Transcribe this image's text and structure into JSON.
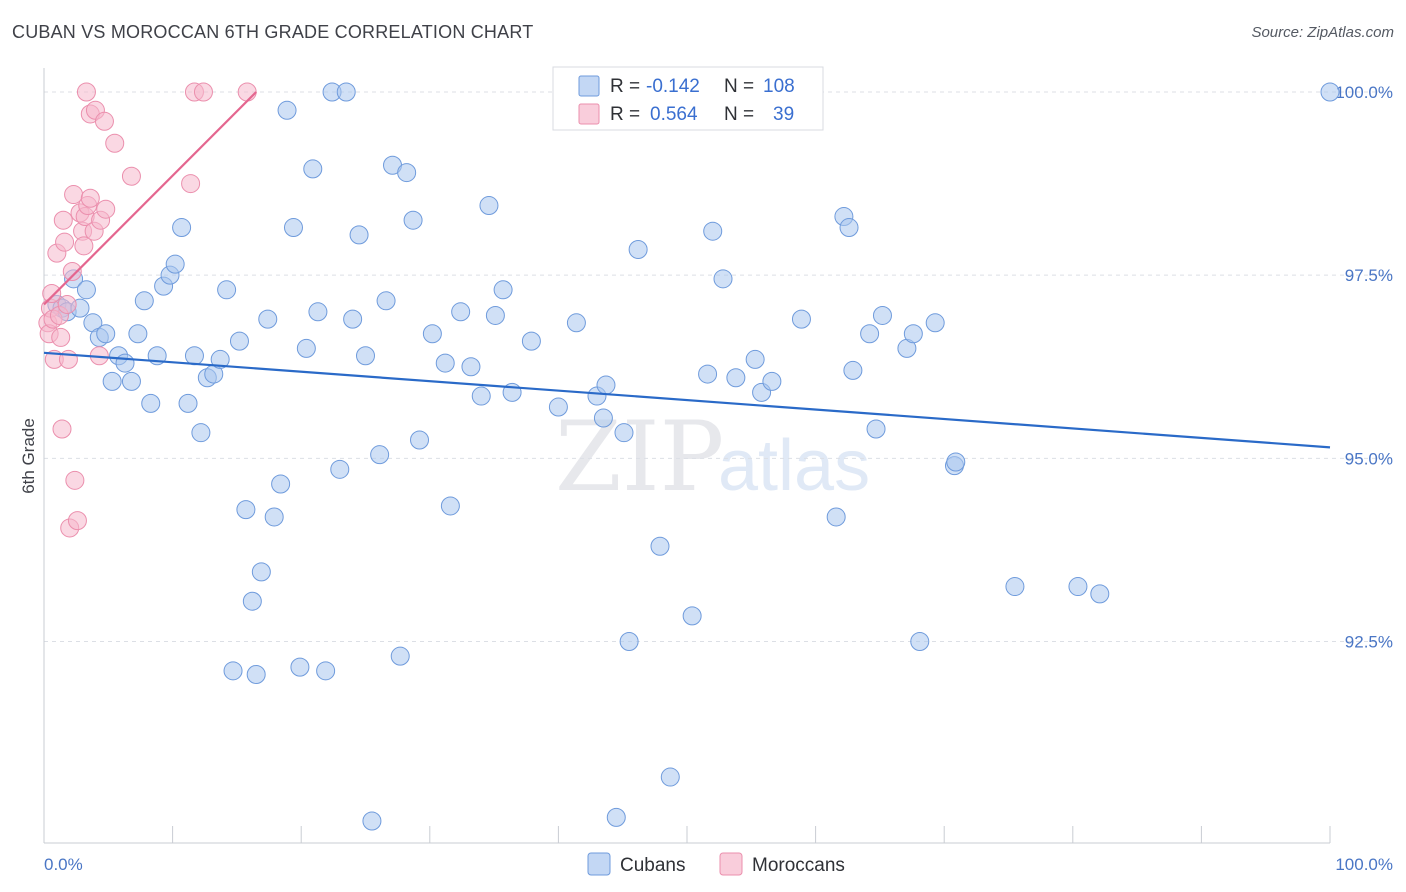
{
  "header": {
    "title": "CUBAN VS MOROCCAN 6TH GRADE CORRELATION CHART",
    "source": "Source: ZipAtlas.com"
  },
  "colors": {
    "cubans_fill": "#a9c6ef",
    "cubans_stroke": "#6f9bdc",
    "cubans_line": "#2a6ac8",
    "moroccans_fill": "#f6b8cc",
    "moroccans_stroke": "#eb8fad",
    "moroccans_line": "#e4668f",
    "axis_label": "#4a76c5",
    "grid": "#dcdfe5"
  },
  "legend_box": {
    "rows": [
      {
        "r_label": "R =",
        "r_value": "-0.142",
        "n_label": "N =",
        "n_value": "108"
      },
      {
        "r_label": "R =",
        "r_value": "0.564",
        "n_label": "N =",
        "n_value": "39"
      }
    ]
  },
  "bottom_legend": [
    "Cubans",
    "Moroccans"
  ],
  "watermark": {
    "zip": "ZIP",
    "atlas": "atlas"
  },
  "chart_data": {
    "type": "scatter",
    "title": "CUBAN VS MOROCCAN 6TH GRADE CORRELATION CHART",
    "xlabel": "",
    "ylabel": "6th Grade",
    "xlim": [
      0,
      100
    ],
    "ylim": [
      89.75,
      100.3
    ],
    "x_tick_labels": [
      "0.0%",
      "100.0%"
    ],
    "y_ticks": [
      92.5,
      95.0,
      97.5,
      100.0
    ],
    "y_tick_labels": [
      "92.5%",
      "95.0%",
      "97.5%",
      "100.0%"
    ],
    "grid": "horizontal dashed",
    "legend_position": "top-center",
    "series": [
      {
        "name": "Cubans",
        "r": -0.142,
        "n": 108,
        "trend": {
          "x": [
            0,
            100
          ],
          "y": [
            96.44,
            95.15
          ]
        },
        "points": [
          [
            1.0,
            97.1
          ],
          [
            1.4,
            97.05
          ],
          [
            1.8,
            97.0
          ],
          [
            2.3,
            97.45
          ],
          [
            2.8,
            97.05
          ],
          [
            3.3,
            97.3
          ],
          [
            3.8,
            96.85
          ],
          [
            4.3,
            96.65
          ],
          [
            4.8,
            96.7
          ],
          [
            5.3,
            96.05
          ],
          [
            5.8,
            96.4
          ],
          [
            6.3,
            96.3
          ],
          [
            6.8,
            96.05
          ],
          [
            7.3,
            96.7
          ],
          [
            7.8,
            97.15
          ],
          [
            8.3,
            95.75
          ],
          [
            8.8,
            96.4
          ],
          [
            9.3,
            97.35
          ],
          [
            9.8,
            97.5
          ],
          [
            10.2,
            97.65
          ],
          [
            10.7,
            98.15
          ],
          [
            11.2,
            95.75
          ],
          [
            11.7,
            96.4
          ],
          [
            12.2,
            95.35
          ],
          [
            12.7,
            96.1
          ],
          [
            13.2,
            96.15
          ],
          [
            13.7,
            96.35
          ],
          [
            14.2,
            97.3
          ],
          [
            14.7,
            92.1
          ],
          [
            15.2,
            96.6
          ],
          [
            15.7,
            94.3
          ],
          [
            16.2,
            93.05
          ],
          [
            16.5,
            92.05
          ],
          [
            16.9,
            93.45
          ],
          [
            17.4,
            96.9
          ],
          [
            17.9,
            94.2
          ],
          [
            18.4,
            94.65
          ],
          [
            18.9,
            99.75
          ],
          [
            19.4,
            98.15
          ],
          [
            19.9,
            92.15
          ],
          [
            20.4,
            96.5
          ],
          [
            20.9,
            98.95
          ],
          [
            21.3,
            97.0
          ],
          [
            21.9,
            92.1
          ],
          [
            22.4,
            100.0
          ],
          [
            23.0,
            94.85
          ],
          [
            23.5,
            100.0
          ],
          [
            24.0,
            96.9
          ],
          [
            24.5,
            98.05
          ],
          [
            25.0,
            96.4
          ],
          [
            25.5,
            90.05
          ],
          [
            26.1,
            95.05
          ],
          [
            26.6,
            97.15
          ],
          [
            27.1,
            99.0
          ],
          [
            27.7,
            92.3
          ],
          [
            28.2,
            98.9
          ],
          [
            28.7,
            98.25
          ],
          [
            29.2,
            95.25
          ],
          [
            30.2,
            96.7
          ],
          [
            31.2,
            96.3
          ],
          [
            31.6,
            94.35
          ],
          [
            32.4,
            97.0
          ],
          [
            33.2,
            96.25
          ],
          [
            34.0,
            95.85
          ],
          [
            34.6,
            98.45
          ],
          [
            35.1,
            96.95
          ],
          [
            35.7,
            97.3
          ],
          [
            36.4,
            95.9
          ],
          [
            37.9,
            96.6
          ],
          [
            40.0,
            95.7
          ],
          [
            41.4,
            96.85
          ],
          [
            43.0,
            95.85
          ],
          [
            43.7,
            96.0
          ],
          [
            43.5,
            95.55
          ],
          [
            44.5,
            90.1
          ],
          [
            45.1,
            95.35
          ],
          [
            45.5,
            92.5
          ],
          [
            46.2,
            97.85
          ],
          [
            47.9,
            93.8
          ],
          [
            48.7,
            90.65
          ],
          [
            50.4,
            92.85
          ],
          [
            51.6,
            96.15
          ],
          [
            52.0,
            98.1
          ],
          [
            52.8,
            97.45
          ],
          [
            53.8,
            96.1
          ],
          [
            55.3,
            96.35
          ],
          [
            55.8,
            95.9
          ],
          [
            56.6,
            96.05
          ],
          [
            58.9,
            96.9
          ],
          [
            61.6,
            94.2
          ],
          [
            62.2,
            98.3
          ],
          [
            62.6,
            98.15
          ],
          [
            62.9,
            96.2
          ],
          [
            64.2,
            96.7
          ],
          [
            64.7,
            95.4
          ],
          [
            65.2,
            96.95
          ],
          [
            67.1,
            96.5
          ],
          [
            67.6,
            96.7
          ],
          [
            68.1,
            92.5
          ],
          [
            69.3,
            96.85
          ],
          [
            70.8,
            94.9
          ],
          [
            70.9,
            94.95
          ],
          [
            75.5,
            93.25
          ],
          [
            80.4,
            93.25
          ],
          [
            82.1,
            93.15
          ],
          [
            100.0,
            100.0
          ]
        ]
      },
      {
        "name": "Moroccans",
        "r": 0.564,
        "n": 39,
        "trend": {
          "x": [
            0,
            16.5
          ],
          "y": [
            97.1,
            100.0
          ]
        },
        "points": [
          [
            0.3,
            96.85
          ],
          [
            0.4,
            96.7
          ],
          [
            0.5,
            97.05
          ],
          [
            0.6,
            97.25
          ],
          [
            0.7,
            96.9
          ],
          [
            0.8,
            96.35
          ],
          [
            1.0,
            97.8
          ],
          [
            1.2,
            96.95
          ],
          [
            1.3,
            96.65
          ],
          [
            1.4,
            95.4
          ],
          [
            1.5,
            98.25
          ],
          [
            1.6,
            97.95
          ],
          [
            1.8,
            97.1
          ],
          [
            1.9,
            96.35
          ],
          [
            2.0,
            94.05
          ],
          [
            2.2,
            97.55
          ],
          [
            2.4,
            94.7
          ],
          [
            2.3,
            98.6
          ],
          [
            2.6,
            94.15
          ],
          [
            2.8,
            98.35
          ],
          [
            3.0,
            98.1
          ],
          [
            3.1,
            97.9
          ],
          [
            3.2,
            98.3
          ],
          [
            3.4,
            98.45
          ],
          [
            3.6,
            98.55
          ],
          [
            3.6,
            99.7
          ],
          [
            3.3,
            100.0
          ],
          [
            3.9,
            98.1
          ],
          [
            4.0,
            99.75
          ],
          [
            4.3,
            96.4
          ],
          [
            4.4,
            98.25
          ],
          [
            4.8,
            98.4
          ],
          [
            4.7,
            99.6
          ],
          [
            5.5,
            99.3
          ],
          [
            6.8,
            98.85
          ],
          [
            11.4,
            98.75
          ],
          [
            11.7,
            100.0
          ],
          [
            12.4,
            100.0
          ],
          [
            15.8,
            100.0
          ]
        ]
      }
    ]
  }
}
